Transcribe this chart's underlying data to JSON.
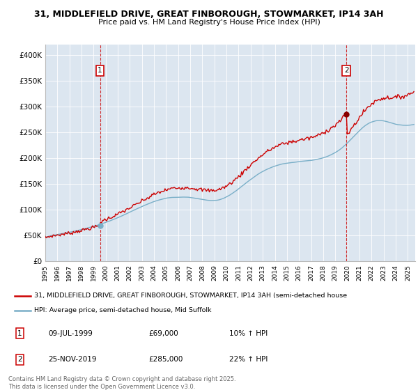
{
  "title_line1": "31, MIDDLEFIELD DRIVE, GREAT FINBOROUGH, STOWMARKET, IP14 3AH",
  "title_line2": "Price paid vs. HM Land Registry's House Price Index (HPI)",
  "bg_color": "#dce6f0",
  "red_color": "#cc0000",
  "blue_color": "#7aafc8",
  "legend_line1": "31, MIDDLEFIELD DRIVE, GREAT FINBOROUGH, STOWMARKET, IP14 3AH (semi-detached house",
  "legend_line2": "HPI: Average price, semi-detached house, Mid Suffolk",
  "footnote": "Contains HM Land Registry data © Crown copyright and database right 2025.\nThis data is licensed under the Open Government Licence v3.0.",
  "table_rows": [
    [
      "1",
      "09-JUL-1999",
      "£69,000",
      "10% ↑ HPI"
    ],
    [
      "2",
      "25-NOV-2019",
      "£285,000",
      "22% ↑ HPI"
    ]
  ],
  "sale1_year": 1999.54,
  "sale1_price": 69000,
  "sale2_year": 2019.92,
  "sale2_price": 285000,
  "ylim_max": 420000,
  "yticks": [
    0,
    50000,
    100000,
    150000,
    200000,
    250000,
    300000,
    350000,
    400000
  ]
}
